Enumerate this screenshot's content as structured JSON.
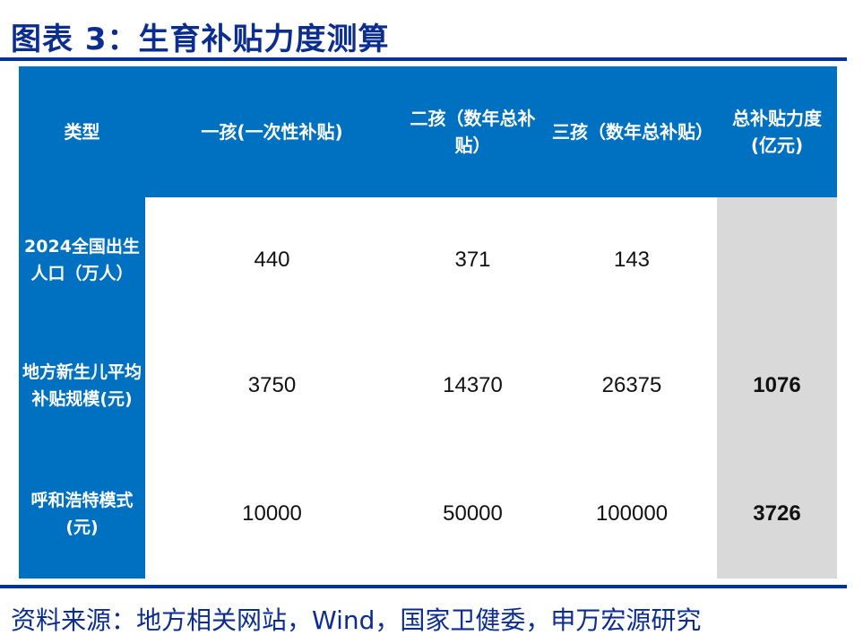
{
  "title": "图表 3：生育补贴力度测算",
  "table": {
    "headers": [
      "类型",
      "一孩(一次性补贴)",
      "二孩（数年总补贴）",
      "三孩（数年总补贴）",
      "总补贴力度(亿元)"
    ],
    "rows": [
      {
        "label": "2024全国出生人口（万人）",
        "values": [
          "440",
          "371",
          "143",
          ""
        ]
      },
      {
        "label": "地方新生儿平均补贴规模(元)",
        "values": [
          "3750",
          "14370",
          "26375",
          "1076"
        ]
      },
      {
        "label": "呼和浩特模式(元)",
        "values": [
          "10000",
          "50000",
          "100000",
          "3726"
        ]
      }
    ]
  },
  "source": "资料来源：地方相关网站，Wind，国家卫健委，申万宏源研究",
  "colors": {
    "header": "#0070c0",
    "title": "#0a2d8f",
    "rule": "#003399",
    "total_column": "#d9d9d9"
  }
}
